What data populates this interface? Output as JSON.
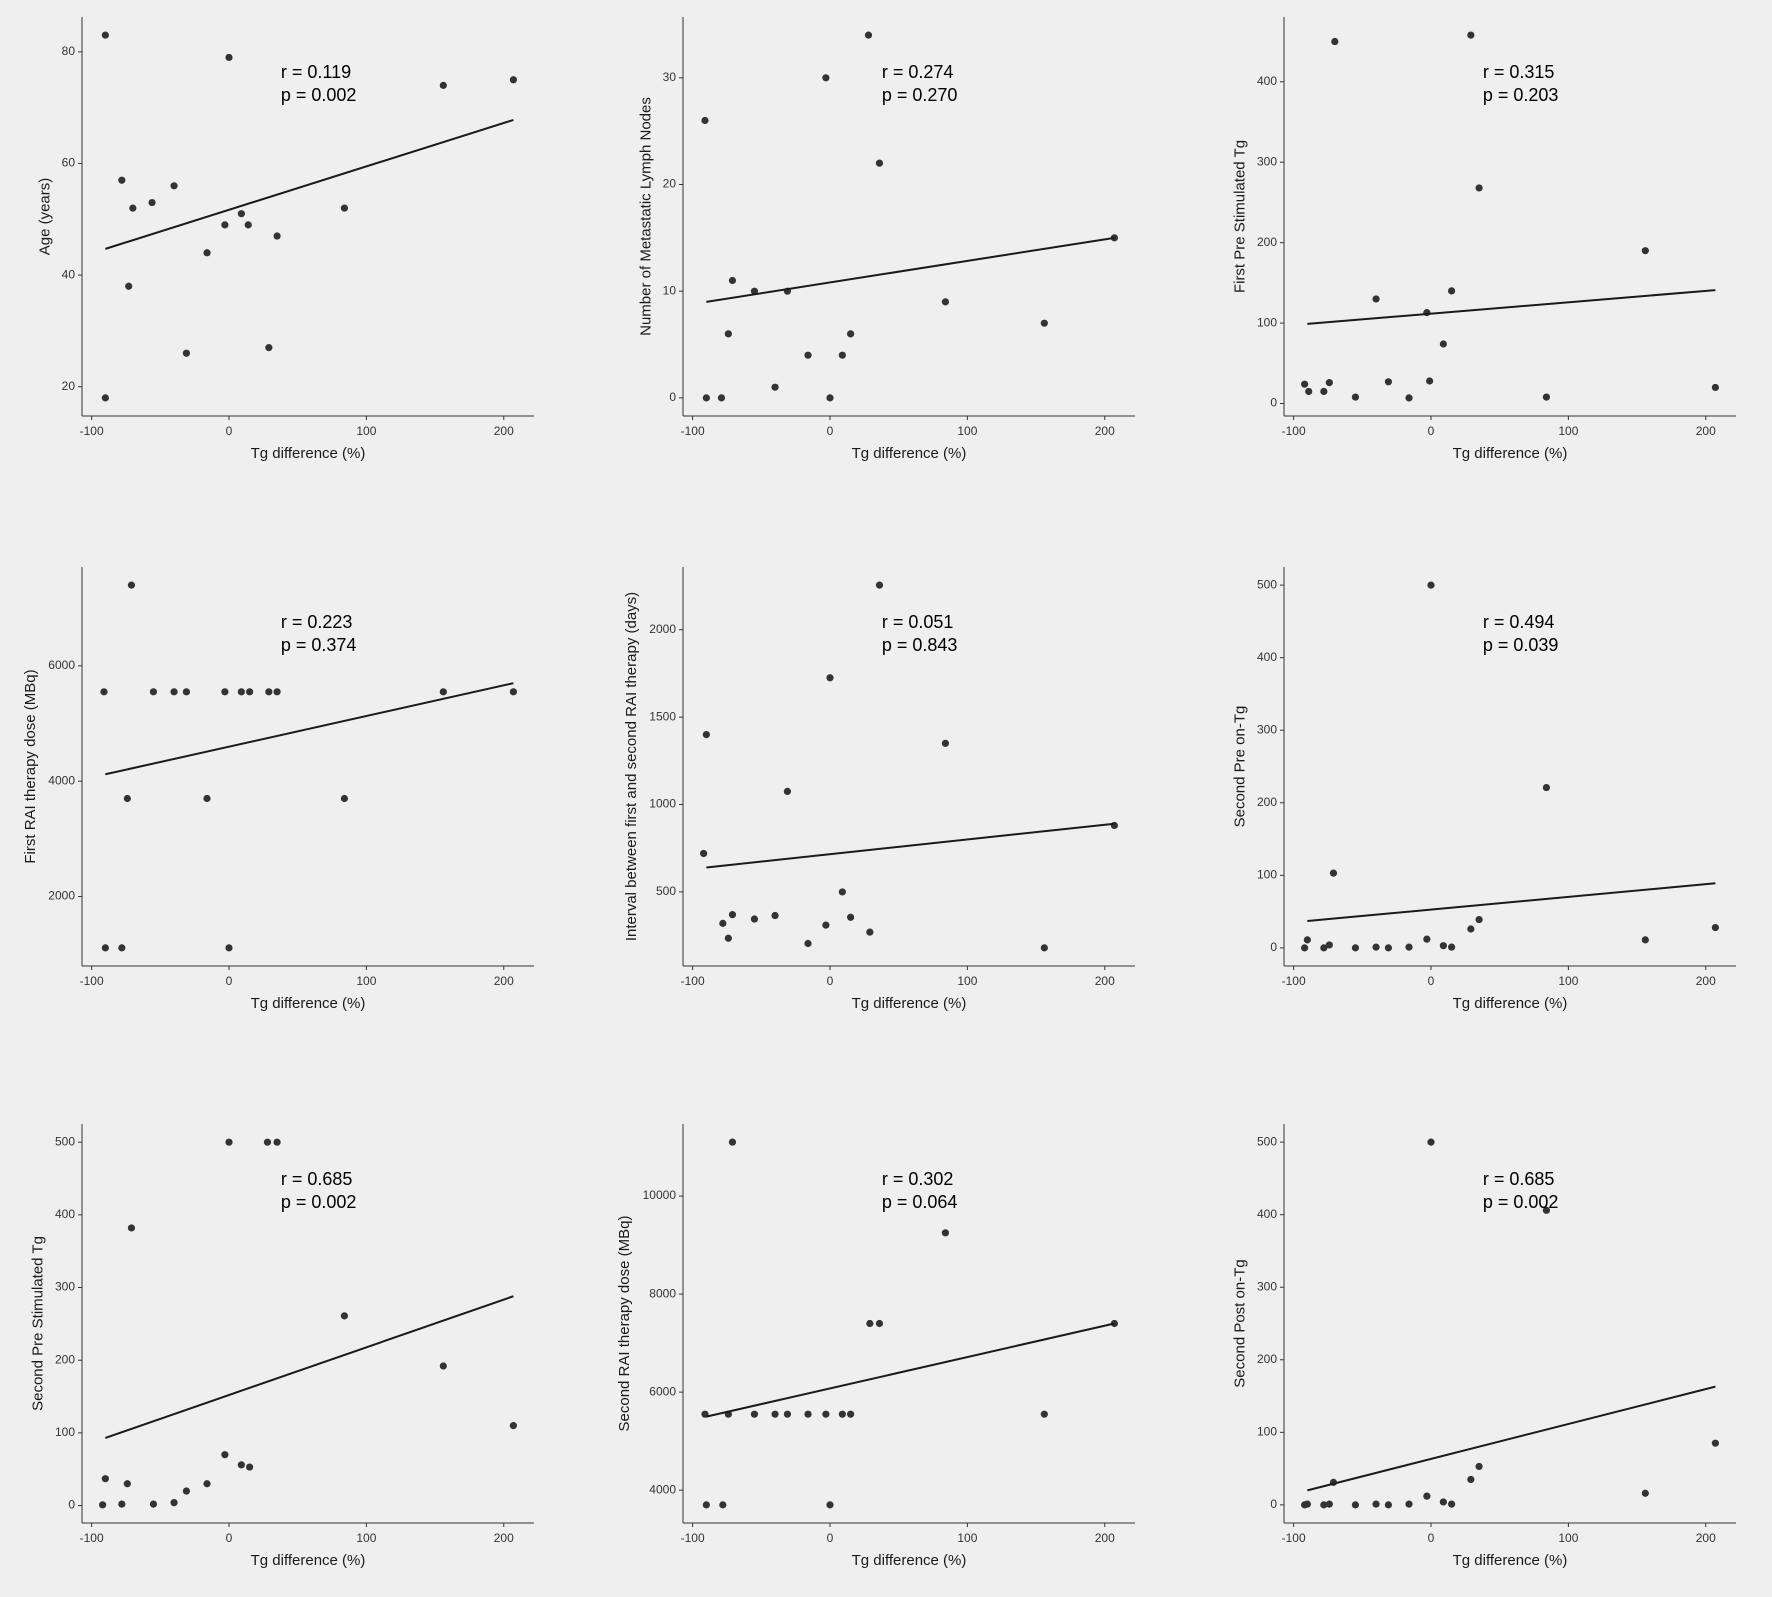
{
  "chart_data": [
    {
      "type": "scatter",
      "x_label": "Tg difference (%)",
      "y_label": "Age (years)",
      "annotation": [
        "r = 0.119",
        "p = 0.002"
      ],
      "x": [
        -90,
        -90,
        -78,
        -73,
        -70,
        -56,
        -40,
        -31,
        -16,
        -3,
        0,
        9,
        14,
        29,
        35,
        84,
        156,
        207
      ],
      "y": [
        83,
        18,
        57,
        38,
        52,
        53,
        56,
        26,
        44,
        49,
        79,
        51,
        49,
        27,
        47,
        52,
        74,
        75
      ],
      "fit": {
        "x": [
          -90,
          207
        ],
        "y": [
          44.7,
          67.8
        ]
      },
      "xlim": [
        -107,
        222
      ],
      "ylim": [
        14.75,
        86.25
      ],
      "xticks": [
        -100,
        0,
        100,
        200
      ],
      "yticks": [
        20,
        40,
        60,
        80
      ],
      "color": "#333333",
      "line_color": "#1a1a1a"
    },
    {
      "type": "scatter",
      "x_label": "Tg difference (%)",
      "y_label": "Number of Metastatic Lymph Nodes",
      "annotation": [
        "r = 0.274",
        "p = 0.270"
      ],
      "x": [
        -91,
        -90,
        -79,
        -74,
        -71,
        -55,
        -40,
        -31,
        -16,
        -3,
        0,
        9,
        15,
        28,
        36,
        84,
        156,
        207
      ],
      "y": [
        26,
        0,
        0,
        6,
        11,
        10,
        1,
        10,
        4,
        30,
        0,
        4,
        6,
        34,
        22,
        9,
        7,
        15
      ],
      "fit": {
        "x": [
          -90,
          207
        ],
        "y": [
          9,
          15
        ]
      },
      "xlim": [
        -107,
        222
      ],
      "ylim": [
        -1.7,
        35.7
      ],
      "xticks": [
        -100,
        0,
        100,
        200
      ],
      "yticks": [
        0,
        10,
        20,
        30
      ],
      "color": "#333333",
      "line_color": "#1a1a1a"
    },
    {
      "type": "scatter",
      "x_label": "Tg difference (%)",
      "y_label": "First Pre Stimulated Tg",
      "annotation": [
        "r = 0.315",
        "p = 0.203"
      ],
      "x": [
        -92,
        -89,
        -78,
        -74,
        -70,
        -55,
        -40,
        -31,
        -16,
        -3,
        -1,
        9,
        15,
        29,
        35,
        84,
        156,
        207
      ],
      "y": [
        24,
        15,
        15,
        26,
        450,
        8,
        130,
        27,
        7,
        113,
        28,
        74,
        140,
        458,
        268,
        8,
        190,
        20
      ],
      "fit": {
        "x": [
          -90,
          207
        ],
        "y": [
          99,
          141
        ]
      },
      "xlim": [
        -107,
        222
      ],
      "ylim": [
        -15.5,
        480.5
      ],
      "xticks": [
        -100,
        0,
        100,
        200
      ],
      "yticks": [
        0,
        100,
        200,
        300,
        400
      ],
      "color": "#333333",
      "line_color": "#1a1a1a"
    },
    {
      "type": "scatter",
      "x_label": "Tg difference (%)",
      "y_label": "First RAI therapy dose (MBq)",
      "annotation": [
        "r = 0.223",
        "p = 0.374"
      ],
      "x": [
        -91,
        -90,
        -78,
        -74,
        -71,
        -55,
        -40,
        -31,
        -16,
        -3,
        0,
        9,
        15,
        29,
        35,
        84,
        156,
        207
      ],
      "y": [
        5550,
        1110,
        1110,
        3700,
        7400,
        5550,
        5550,
        5550,
        3700,
        5550,
        1110,
        5550,
        5550,
        5550,
        5550,
        3700,
        5550,
        5550
      ],
      "fit": {
        "x": [
          -90,
          207
        ],
        "y": [
          4120,
          5700
        ]
      },
      "xlim": [
        -107,
        222
      ],
      "ylim": [
        795.5,
        7714.5
      ],
      "xticks": [
        -100,
        0,
        100,
        200
      ],
      "yticks": [
        2000,
        4000,
        6000
      ],
      "color": "#333333",
      "line_color": "#1a1a1a"
    },
    {
      "type": "scatter",
      "x_label": "Tg difference (%)",
      "y_label": "Interval between first and second RAI therapy  (days)",
      "annotation": [
        "r = 0.051",
        "p = 0.843"
      ],
      "x": [
        -92,
        -90,
        -78,
        -74,
        -71,
        -55,
        -40,
        -31,
        -16,
        -3,
        0,
        9,
        15,
        29,
        36,
        84,
        156,
        207
      ],
      "y": [
        720,
        1400,
        320,
        235,
        370,
        345,
        365,
        1075,
        205,
        310,
        1725,
        500,
        355,
        270,
        2255,
        1350,
        180,
        880
      ],
      "fit": {
        "x": [
          -90,
          207
        ],
        "y": [
          640,
          890
        ]
      },
      "xlim": [
        -107,
        222
      ],
      "ylim": [
        76.25,
        2358.75
      ],
      "xticks": [
        -100,
        0,
        100,
        200
      ],
      "yticks": [
        500,
        1000,
        1500,
        2000
      ],
      "color": "#333333",
      "line_color": "#1a1a1a"
    },
    {
      "type": "scatter",
      "x_label": "Tg difference (%)",
      "y_label": "Second Pre on-Tg",
      "annotation": [
        "r = 0.494",
        "p = 0.039"
      ],
      "x": [
        -92,
        -90,
        -78,
        -74,
        -71,
        -55,
        -40,
        -31,
        -16,
        -3,
        0,
        9,
        15,
        29,
        35,
        84,
        156,
        207
      ],
      "y": [
        0,
        11,
        0,
        4,
        103,
        0,
        1,
        0,
        1,
        12,
        500,
        3,
        1,
        26,
        39,
        221,
        11,
        28
      ],
      "fit": {
        "x": [
          -90,
          207
        ],
        "y": [
          37,
          89
        ]
      },
      "xlim": [
        -107,
        222
      ],
      "ylim": [
        -25,
        525
      ],
      "xticks": [
        -100,
        0,
        100,
        200
      ],
      "yticks": [
        0,
        100,
        200,
        300,
        400,
        500
      ],
      "color": "#333333",
      "line_color": "#1a1a1a"
    },
    {
      "type": "scatter",
      "x_label": "Tg difference (%)",
      "y_label": "Second Pre Stimulated Tg",
      "annotation": [
        "r = 0.685",
        "p = 0.002"
      ],
      "x": [
        -92,
        -90,
        -78,
        -74,
        -71,
        -55,
        -40,
        -31,
        -16,
        -3,
        0,
        9,
        15,
        28,
        35,
        84,
        156,
        207
      ],
      "y": [
        1,
        37,
        2,
        30,
        382,
        2,
        4,
        20,
        30,
        70,
        500,
        56,
        53,
        500,
        500,
        261,
        192,
        110
      ],
      "fit": {
        "x": [
          -90,
          207
        ],
        "y": [
          93,
          288
        ]
      },
      "xlim": [
        -107,
        222
      ],
      "ylim": [
        -24,
        525
      ],
      "xticks": [
        -100,
        0,
        100,
        200
      ],
      "yticks": [
        0,
        100,
        200,
        300,
        400,
        500
      ],
      "color": "#333333",
      "line_color": "#1a1a1a"
    },
    {
      "type": "scatter",
      "x_label": "Tg difference (%)",
      "y_label": "Second RAI therapy dose (MBq)",
      "annotation": [
        "r = 0.302",
        "p = 0.064"
      ],
      "x": [
        -91,
        -90,
        -78,
        -74,
        -71,
        -55,
        -40,
        -31,
        -16,
        -3,
        0,
        9,
        15,
        29,
        36,
        84,
        156,
        207
      ],
      "y": [
        5550,
        3700,
        3700,
        5550,
        11100,
        5550,
        5550,
        5550,
        5550,
        5550,
        3700,
        5550,
        5550,
        7400,
        7400,
        9250,
        5550,
        7400
      ],
      "fit": {
        "x": [
          -90,
          207
        ],
        "y": [
          5500,
          7400
        ]
      },
      "xlim": [
        -107,
        222
      ],
      "ylim": [
        3330,
        11470
      ],
      "xticks": [
        -100,
        0,
        100,
        200
      ],
      "yticks": [
        4000,
        6000,
        8000,
        10000
      ],
      "color": "#333333",
      "line_color": "#1a1a1a"
    },
    {
      "type": "scatter",
      "x_label": "Tg difference (%)",
      "y_label": "Second Post on-Tg",
      "annotation": [
        "r = 0.685",
        "p = 0.002"
      ],
      "x": [
        -92,
        -90,
        -78,
        -74,
        -71,
        -55,
        -40,
        -31,
        -16,
        -3,
        0,
        9,
        15,
        29,
        35,
        84,
        156,
        207
      ],
      "y": [
        0,
        1,
        0,
        1,
        31,
        0,
        1,
        0,
        1,
        12,
        500,
        4,
        1,
        35,
        53,
        406,
        16,
        85
      ],
      "fit": {
        "x": [
          -90,
          207
        ],
        "y": [
          20,
          163
        ]
      },
      "xlim": [
        -107,
        222
      ],
      "ylim": [
        -25,
        525
      ],
      "xticks": [
        -100,
        0,
        100,
        200
      ],
      "yticks": [
        0,
        100,
        200,
        300,
        400,
        500
      ],
      "color": "#333333",
      "line_color": "#1a1a1a"
    }
  ]
}
